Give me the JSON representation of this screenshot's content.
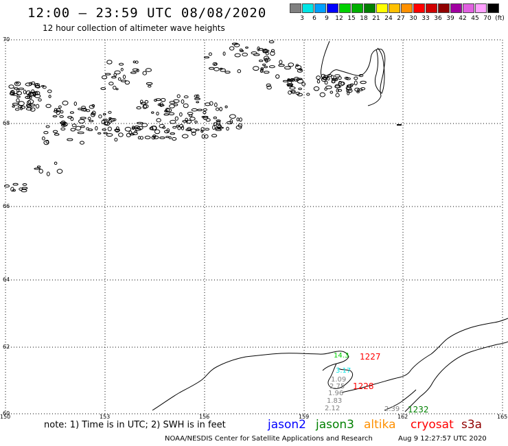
{
  "header": {
    "title": "12:00 – 23:59 UTC 08/08/2020",
    "subtitle": "12 hour collection of altimeter wave heights"
  },
  "colorbar": {
    "colors": [
      "#808080",
      "#00e5e5",
      "#00a0ff",
      "#0000ff",
      "#00d000",
      "#00b000",
      "#008000",
      "#ffff00",
      "#ffc000",
      "#ff9000",
      "#ff0000",
      "#d00000",
      "#900000",
      "#a000a0",
      "#e060e0",
      "#ffa0ff",
      "#000000"
    ],
    "labels": [
      "3",
      "6",
      "9",
      "12",
      "15",
      "18",
      "21",
      "24",
      "27",
      "30",
      "33",
      "36",
      "39",
      "42",
      "45",
      "70",
      "(ft)"
    ]
  },
  "map": {
    "lat_labels": [
      "70",
      "68",
      "66",
      "64",
      "62",
      "60"
    ],
    "lon_labels": [
      "150",
      "153",
      "156",
      "159",
      "162",
      "165"
    ]
  },
  "observations": [
    {
      "text": "14.3",
      "color": "#00d000"
    },
    {
      "text": "3.17",
      "color": "#00e5e5"
    },
    {
      "text": "1.09",
      "color": "#808080"
    },
    {
      "text": "2.75",
      "color": "#808080"
    },
    {
      "text": "1.96",
      "color": "#808080"
    },
    {
      "text": "1.83",
      "color": "#808080"
    },
    {
      "text": "2.12",
      "color": "#808080"
    },
    {
      "text": "2.39",
      "color": "#808080"
    }
  ],
  "passes": [
    {
      "text": "1227",
      "color": "#ff0000"
    },
    {
      "text": "1228",
      "color": "#ff0000"
    },
    {
      "text": "1232",
      "color": "#008000"
    }
  ],
  "footer": {
    "note": "note: 1) Time is in UTC; 2) SWH is in feet",
    "satellites": [
      {
        "name": "jason2",
        "color": "#0000ff"
      },
      {
        "name": "jason3",
        "color": "#008000"
      },
      {
        "name": "altika",
        "color": "#ff9000"
      },
      {
        "name": "cryosat",
        "color": "#ff0000"
      },
      {
        "name": "s3a",
        "color": "#900000"
      }
    ],
    "credit": "NOAA/NESDIS Center for Satellite Applications and Research",
    "timestamp": "Aug  9 12:27:57 UTC 2020"
  }
}
